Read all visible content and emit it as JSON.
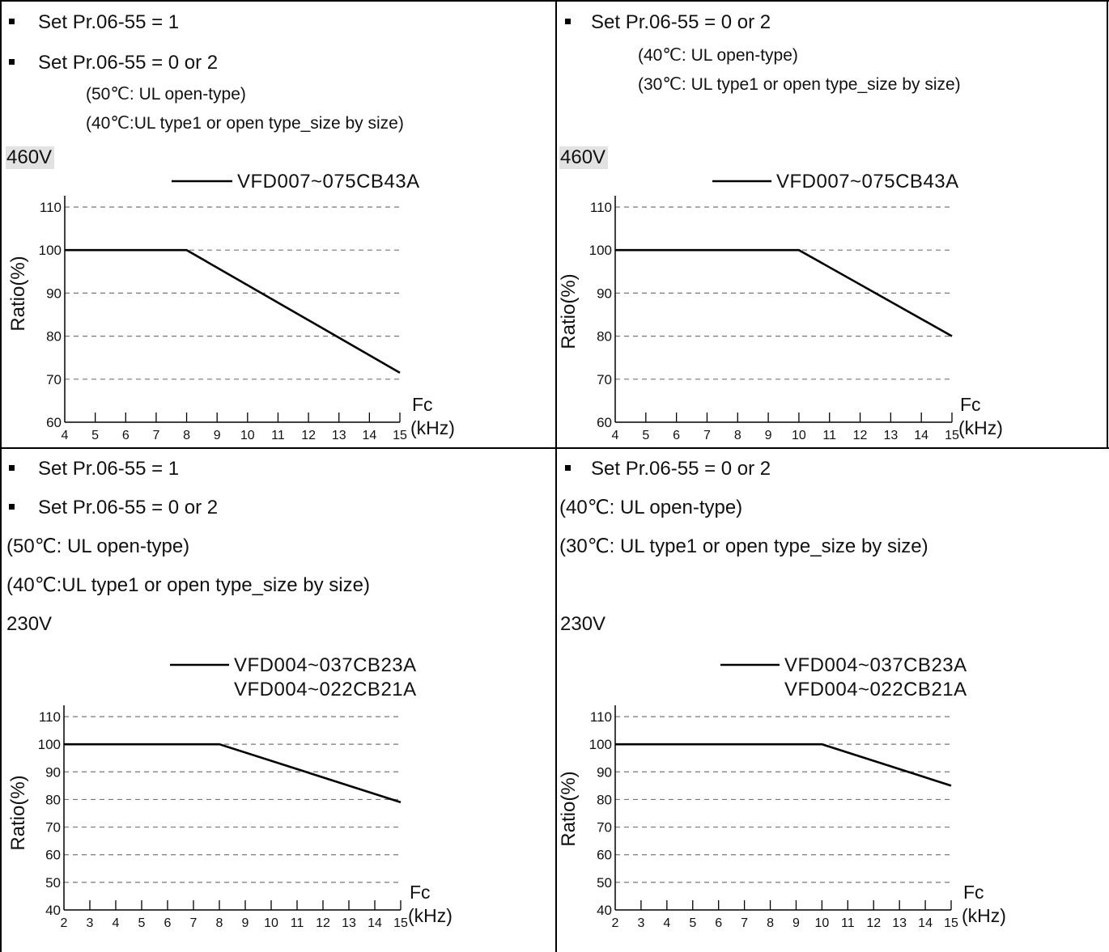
{
  "top_left": {
    "lines": [
      "Set Pr.06-55 = 1",
      "Set Pr.06-55 = 0 or 2"
    ],
    "notes": [
      "(50℃: UL open-type)",
      "(40℃:UL type1 or open type_size by size)"
    ],
    "voltage": "460V"
  },
  "top_right": {
    "lines": [
      "Set Pr.06-55 = 0 or 2"
    ],
    "notes": [
      "(40℃: UL open-type)",
      "(30℃: UL type1 or open type_size by size)"
    ],
    "voltage": "460V"
  },
  "bottom_left": {
    "lines": [
      "Set Pr.06-55 = 1",
      "Set Pr.06-55 = 0 or 2"
    ],
    "notes": [
      "(50℃: UL open-type)",
      "(40℃:UL type1 or open type_size by size)"
    ],
    "voltage": "230V"
  },
  "bottom_right": {
    "lines": [
      "Set Pr.06-55 = 0 or 2"
    ],
    "notes": [
      "(40℃: UL open-type)",
      "(30℃: UL type1 or open type_size by size)"
    ],
    "voltage": "230V"
  },
  "chart_data": [
    {
      "type": "line",
      "xlabel": [
        "Fc",
        "(kHz)"
      ],
      "ylabel": "Ratio(%)",
      "xlim": [
        4,
        15
      ],
      "ylim": [
        60,
        110
      ],
      "xticks": [
        4,
        5,
        6,
        7,
        8,
        9,
        10,
        11,
        12,
        13,
        14,
        15
      ],
      "yticks": [
        60,
        70,
        80,
        90,
        100,
        110
      ],
      "grid": "dashed horizontal",
      "legend_position": "top",
      "series": [
        {
          "name": "VFD007~075CB43A",
          "x": [
            4,
            8,
            15
          ],
          "y": [
            100,
            100,
            71.5
          ]
        }
      ]
    },
    {
      "type": "line",
      "xlabel": [
        "Fc",
        "(kHz)"
      ],
      "ylabel": "Ratio(%)",
      "xlim": [
        4,
        15
      ],
      "ylim": [
        60,
        110
      ],
      "xticks": [
        4,
        5,
        6,
        7,
        8,
        9,
        10,
        11,
        12,
        13,
        14,
        15
      ],
      "yticks": [
        60,
        70,
        80,
        90,
        100,
        110
      ],
      "grid": "dashed horizontal",
      "legend_position": "top",
      "series": [
        {
          "name": "VFD007~075CB43A",
          "x": [
            4,
            10,
            15
          ],
          "y": [
            100,
            100,
            80
          ]
        }
      ]
    },
    {
      "type": "line",
      "xlabel": [
        "Fc",
        "(kHz)"
      ],
      "ylabel": "Ratio(%)",
      "xlim": [
        2,
        15
      ],
      "ylim": [
        40,
        110
      ],
      "xticks": [
        2,
        3,
        4,
        5,
        6,
        7,
        8,
        9,
        10,
        11,
        12,
        13,
        14,
        15
      ],
      "yticks": [
        40,
        50,
        60,
        70,
        80,
        90,
        100,
        110
      ],
      "grid": "dashed horizontal",
      "legend_position": "top",
      "series": [
        {
          "name": "VFD004~037CB23A\nVFD004~022CB21A",
          "x": [
            2,
            8,
            15
          ],
          "y": [
            100,
            100,
            79
          ]
        }
      ]
    },
    {
      "type": "line",
      "xlabel": [
        "Fc",
        "(kHz)"
      ],
      "ylabel": "Ratio(%)",
      "xlim": [
        2,
        15
      ],
      "ylim": [
        40,
        110
      ],
      "xticks": [
        2,
        3,
        4,
        5,
        6,
        7,
        8,
        9,
        10,
        11,
        12,
        13,
        14,
        15
      ],
      "yticks": [
        40,
        50,
        60,
        70,
        80,
        90,
        100,
        110
      ],
      "grid": "dashed horizontal",
      "legend_position": "top",
      "series": [
        {
          "name": "VFD004~037CB23A\nVFD004~022CB21A",
          "x": [
            2,
            10,
            15
          ],
          "y": [
            100,
            100,
            85
          ]
        }
      ]
    }
  ]
}
